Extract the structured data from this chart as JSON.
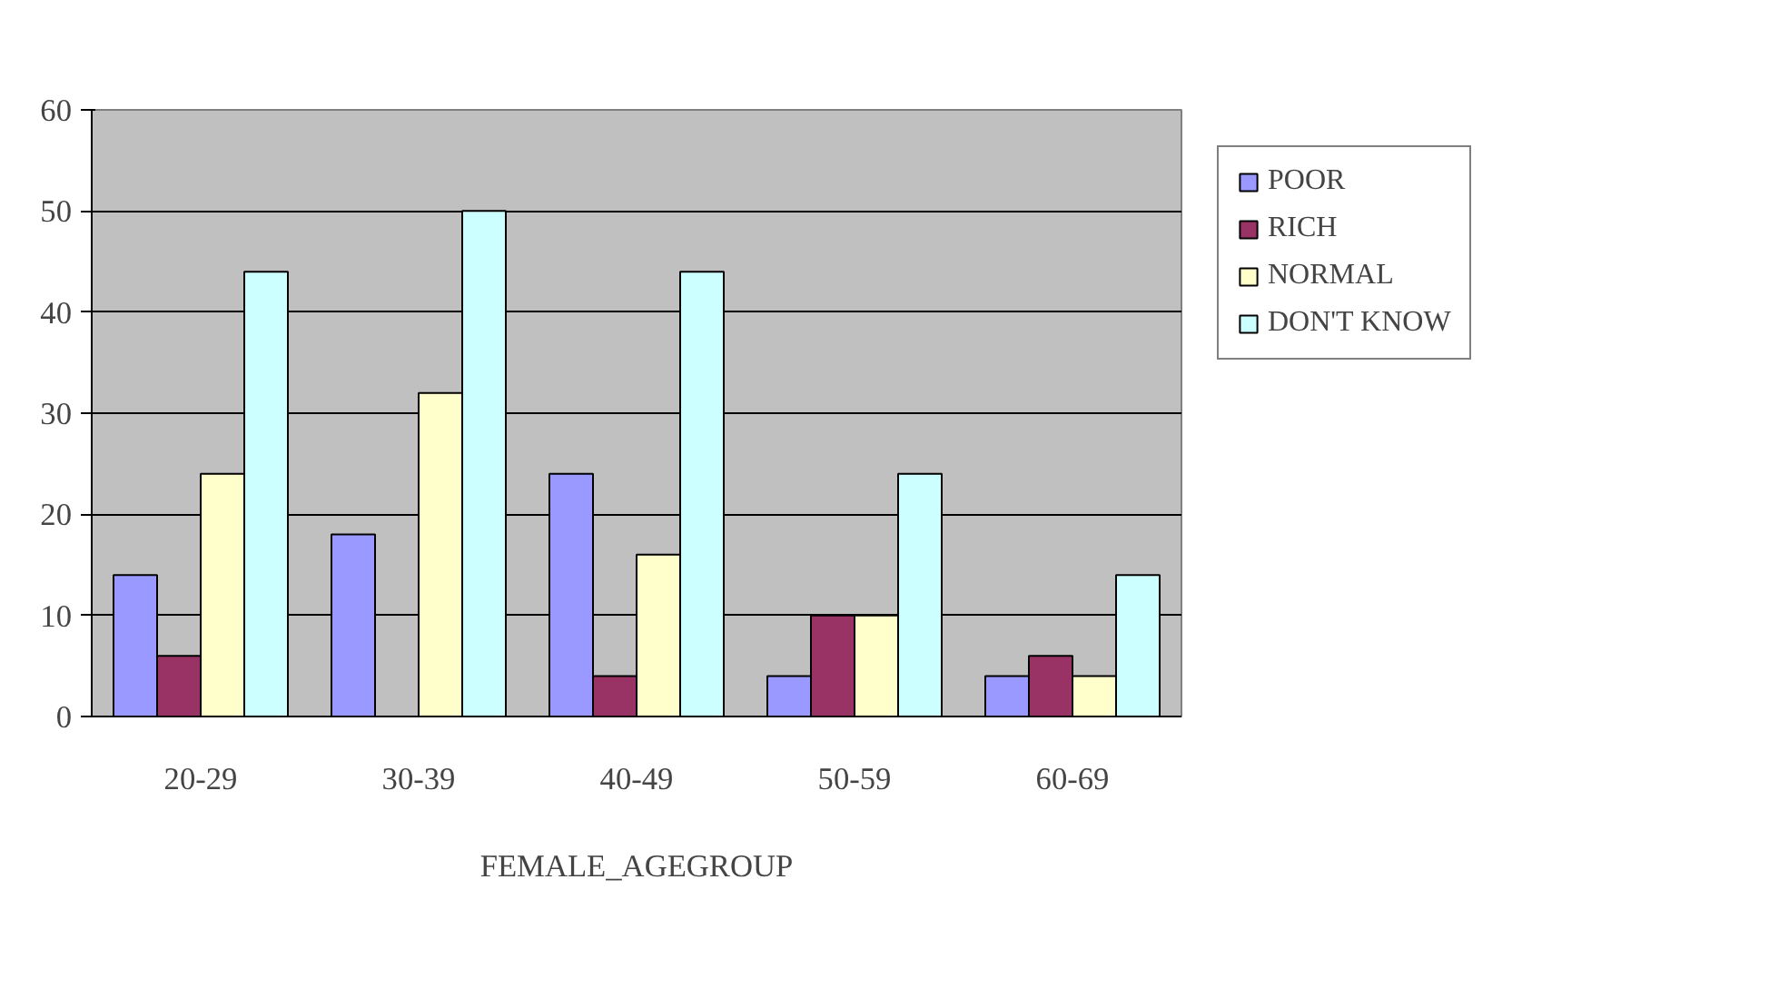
{
  "chart_data": {
    "type": "bar",
    "xlabel": "FEMALE_AGEGROUP",
    "categories": [
      "20-29",
      "30-39",
      "40-49",
      "50-59",
      "60-69"
    ],
    "series": [
      {
        "name": "POOR",
        "color": "#9999ff",
        "values": [
          14,
          18,
          24,
          4,
          4
        ]
      },
      {
        "name": "RICH",
        "color": "#993366",
        "values": [
          6,
          null,
          4,
          10,
          6
        ]
      },
      {
        "name": "NORMAL",
        "color": "#ffffcc",
        "values": [
          24,
          32,
          16,
          10,
          4
        ]
      },
      {
        "name": "DON'T KNOW",
        "color": "#ccffff",
        "values": [
          44,
          50,
          44,
          24,
          14
        ]
      }
    ],
    "ylim": [
      0,
      60
    ],
    "yticks": [
      0,
      10,
      20,
      30,
      40,
      50,
      60
    ],
    "grid": "y",
    "legend": "right"
  }
}
